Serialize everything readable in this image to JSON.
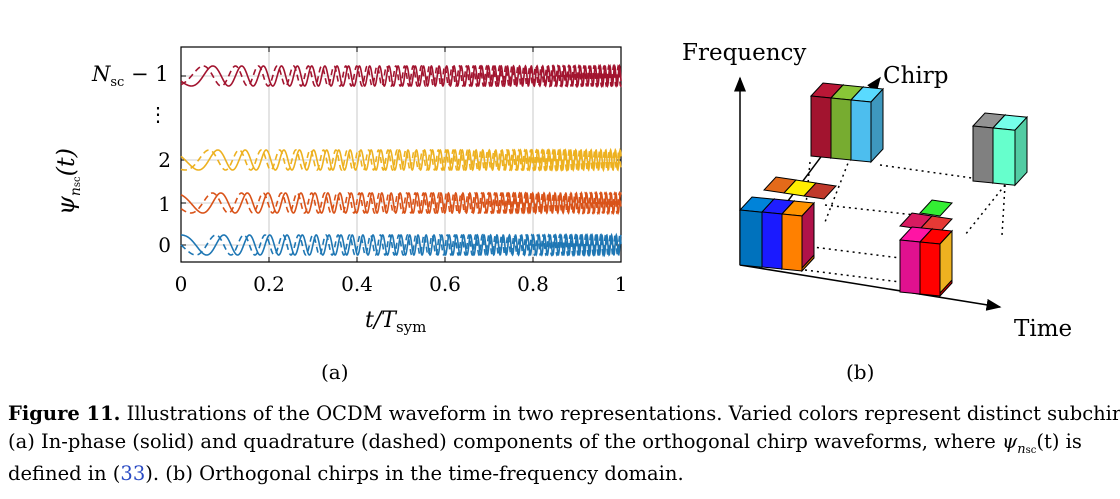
{
  "panel_a": {
    "y_axis_label_symbol": "ψ",
    "y_axis_label_sub": "n",
    "y_axis_label_subsub": "sc",
    "y_axis_label_arg": "(t)",
    "y_tick_labels": [
      "0",
      "1",
      "2",
      "⋮",
      "N",
      "sc",
      "− 1"
    ],
    "x_axis_label": "t/T",
    "x_axis_label_sub": "sym",
    "panel_label": "(a)"
  },
  "chart_data": {
    "type": "line",
    "title": "",
    "xlabel": "t/T_sym",
    "ylabel": "ψ_nsc(t)",
    "x_ticks": [
      0,
      0.2,
      0.4,
      0.6,
      0.8,
      1
    ],
    "x_tick_labels": [
      "0",
      "0.2",
      "0.4",
      "0.6",
      "0.8",
      "1"
    ],
    "xlim": [
      0,
      1
    ],
    "y_ticks": [
      "0",
      "1",
      "2",
      "Nsc − 1"
    ],
    "grid": true,
    "series": [
      {
        "name": "subchirp 0 in-phase (solid)",
        "subchirp": 0,
        "style": "solid",
        "color": "#1f77b4"
      },
      {
        "name": "subchirp 0 quadrature (dashed)",
        "subchirp": 0,
        "style": "dashed",
        "color": "#1f77b4"
      },
      {
        "name": "subchirp 1 in-phase (solid)",
        "subchirp": 1,
        "style": "solid",
        "color": "#d95319"
      },
      {
        "name": "subchirp 1 quadrature (dashed)",
        "subchirp": 1,
        "style": "dashed",
        "color": "#d95319"
      },
      {
        "name": "subchirp 2 in-phase (solid)",
        "subchirp": 2,
        "style": "solid",
        "color": "#edb120"
      },
      {
        "name": "subchirp 2 quadrature (dashed)",
        "subchirp": 2,
        "style": "dashed",
        "color": "#edb120"
      },
      {
        "name": "subchirp Nsc−1 in-phase (solid)",
        "subchirp": "Nsc-1",
        "style": "solid",
        "color": "#a2142f"
      },
      {
        "name": "subchirp Nsc−1 quadrature (dashed)",
        "subchirp": "Nsc-1",
        "style": "dashed",
        "color": "#a2142f"
      }
    ]
  },
  "panel_b": {
    "axis_frequency": "Frequency",
    "axis_chirp": "Chirp",
    "axis_time": "Time",
    "panel_label": "(b)",
    "colors": {
      "blue": "#0072bd",
      "deep_blue": "#1a1aff",
      "orange": "#ff8000",
      "crimson": "#b0124a",
      "dark_red": "#a2142f",
      "olive_green": "#77ac30",
      "sky_blue": "#4dbeee",
      "gray": "#808080",
      "aqua": "#66ffcc",
      "magenta": "#e0118f",
      "red": "#ff0000",
      "gold": "#edb120",
      "green": "#33ee33",
      "yellow": "#ffee00"
    }
  },
  "caption": {
    "label": "Figure 11.",
    "line1": "Illustrations of the OCDM waveform in two representations. Varied colors represent distinct subchirps.",
    "line2_start": "(a) In-phase (solid) and quadrature (dashed) components of the orthogonal chirp waveforms, where",
    "line2_symbol": "ψ",
    "line2_sub": "n",
    "line2_subsub": "sc",
    "line2_end": "(t) is",
    "line3_start": "defined in (",
    "line3_ref": "33",
    "line3_end": "). (b) Orthogonal chirps in the time-frequency domain."
  }
}
